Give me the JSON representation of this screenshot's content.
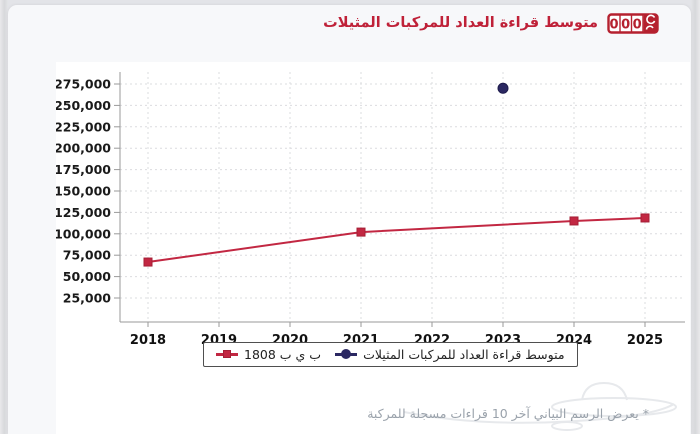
{
  "header": {
    "title": "متوسط قراءة العداد للمركبات المثيلات",
    "odometer_icon": {
      "digits": [
        "0",
        "0",
        "0"
      ],
      "color": "#b5212f"
    }
  },
  "footer": {
    "marker": "*",
    "note": "يعرض الرسم البياني آخر 10 قراءات مسجلة للمركبة"
  },
  "colors": {
    "accent_red": "#c22742",
    "navy": "#2b2862",
    "title_red": "#bf2138",
    "page_bg": "#e3e4e8",
    "card_bg": "#f7f8fa",
    "panel_bg": "#ffffff",
    "grid": "#dbdcdf",
    "axis": "#9a9a9a",
    "tick_text": "#1a1a1a",
    "muted_text": "#9aa2ab"
  },
  "chart_data": {
    "type": "line",
    "title": "متوسط قراءة العداد للمركبات المثيلات",
    "xlabel": "",
    "ylabel": "",
    "x_categories": [
      2018,
      2019,
      2020,
      2021,
      2022,
      2023,
      2024,
      2025
    ],
    "yticks": [
      25000,
      50000,
      75000,
      100000,
      125000,
      150000,
      175000,
      200000,
      225000,
      250000,
      275000
    ],
    "ylim": [
      0,
      289000
    ],
    "grid": true,
    "grid_style": "dashed",
    "legend_position": "bottom",
    "series": [
      {
        "name": "1808 ب ي ب",
        "type": "line",
        "color": "#c22742",
        "marker": "square",
        "points": [
          {
            "x": 2018,
            "y": 67000
          },
          {
            "x": 2021,
            "y": 102000
          },
          {
            "x": 2024,
            "y": 115000
          },
          {
            "x": 2025,
            "y": 118500
          }
        ]
      },
      {
        "name": "متوسط قراءة العداد للمركبات المثيلات",
        "type": "scatter",
        "color": "#2b2862",
        "marker": "circle",
        "points": [
          {
            "x": 2023,
            "y": 270000
          }
        ]
      }
    ]
  }
}
